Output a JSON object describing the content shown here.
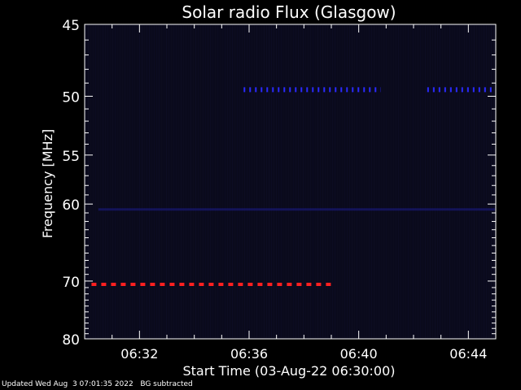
{
  "chart_data": {
    "type": "heatmap",
    "title": "Solar radio Flux (Glasgow)",
    "ylabel": "Frequency [MHz]",
    "xlabel": "Start Time (03-Aug-22 06:30:00)",
    "x_tick_labels": [
      "06:32",
      "06:36",
      "06:40",
      "06:44"
    ],
    "x_tick_minutes": [
      2,
      6,
      10,
      14
    ],
    "xlim_minutes": [
      0,
      15
    ],
    "y_tick_labels": [
      "45",
      "50",
      "55",
      "60",
      "70",
      "80"
    ],
    "y_tick_values": [
      45,
      50,
      55,
      60,
      70,
      80
    ],
    "ylim": [
      45,
      80
    ],
    "y_scale": "reciprocal",
    "features": [
      {
        "label": "red dashed line",
        "frequency_mhz": 70.5,
        "start_minute": 0.25,
        "end_minute": 9.0,
        "color": "#ff2020"
      },
      {
        "label": "blue dotted line",
        "frequency_mhz": 49.5,
        "start_minute": 5.8,
        "end_minute": 10.8,
        "color": "#2a2aff"
      },
      {
        "label": "blue dotted line",
        "frequency_mhz": 49.5,
        "start_minute": 12.5,
        "end_minute": 15.0,
        "color": "#2a2aff"
      },
      {
        "label": "blue band",
        "frequency_mhz": 60.6,
        "start_minute": 0.5,
        "end_minute": 15.0,
        "color": "#1a1a80"
      }
    ],
    "background_color": "#0a0a1c",
    "grid": false
  },
  "footer": {
    "updated": "Updated Wed Aug  3 07:01:35 2022",
    "note": "BG subtracted"
  }
}
